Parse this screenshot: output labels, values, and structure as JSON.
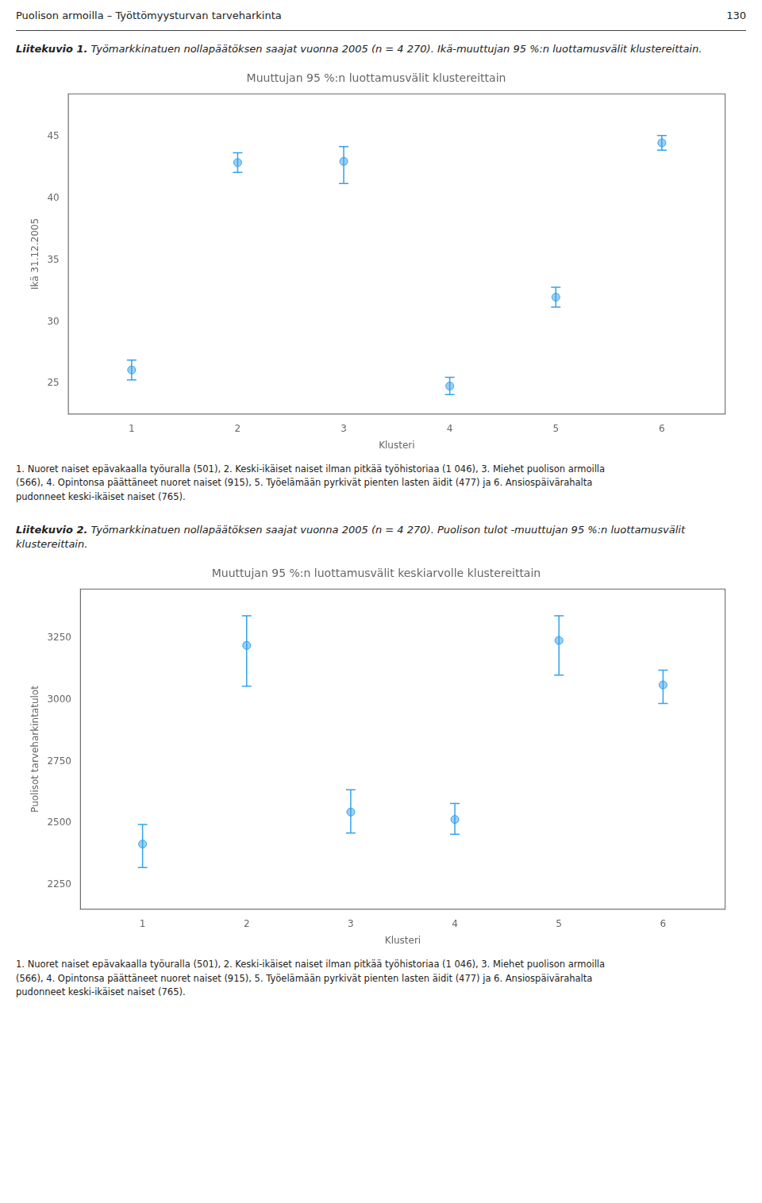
{
  "page_header": "Puolison armoilla – Työttömyysturvan tarveharkinta",
  "page_number": "130",
  "chart_data": [
    {
      "type": "errorbar",
      "caption_label": "Liitekuvio 1.",
      "caption": "Työmarkkinatuen nollapäätöksen saajat vuonna 2005 (n = 4 270). Ikä-muuttujan 95 %:n luottamusvälit klustereittain.",
      "title": "Muuttujan 95 %:n luottamusvälit klustereittain",
      "xlabel": "Klusteri",
      "ylabel": "Ikä 31.12.2005",
      "x": [
        1,
        2,
        3,
        4,
        5,
        6
      ],
      "values": [
        26.1,
        42.9,
        43.0,
        24.8,
        32.0,
        44.5
      ],
      "lower": [
        25.3,
        42.1,
        41.2,
        24.1,
        31.2,
        43.9
      ],
      "upper": [
        26.9,
        43.7,
        44.2,
        25.5,
        32.8,
        45.1
      ],
      "xlim": [
        0.4,
        6.6
      ],
      "xticks": [
        1,
        2,
        3,
        4,
        5,
        6
      ],
      "ylim": [
        22.5,
        48.5
      ],
      "yticks": [
        25,
        30,
        35,
        40,
        45
      ],
      "grid": false,
      "marker": "circle",
      "footnote": "1. Nuoret naiset epävakaalla työuralla (501), 2. Keski-ikäiset naiset ilman pitkää työhistoriaa (1 046), 3. Miehet puolison armoilla\n(566), 4. Opintonsa päättäneet nuoret naiset (915), 5. Työelämään pyrkivät pienten lasten äidit (477) ja 6. Ansiospäivärahalta\npudonneet keski-ikäiset naiset (765)."
    },
    {
      "type": "errorbar",
      "caption_label": "Liitekuvio 2.",
      "caption": "Työmarkkinatuen nollapäätöksen saajat vuonna 2005 (n = 4 270). Puolison tulot -muuttujan 95 %:n luottamusvälit klustereittain.",
      "title": "Muuttujan 95 %:n luottamusvälit keskiarvolle klustereittain",
      "xlabel": "Klusteri",
      "ylabel": "Puolisot tarveharkintatulot",
      "x": [
        1,
        2,
        3,
        4,
        5,
        6
      ],
      "values": [
        2415,
        3220,
        2545,
        2515,
        3240,
        3060
      ],
      "lower": [
        2320,
        3055,
        2460,
        2455,
        3100,
        2985
      ],
      "upper": [
        2495,
        3340,
        2635,
        2580,
        3340,
        3120
      ],
      "xlim": [
        0.4,
        6.6
      ],
      "xticks": [
        1,
        2,
        3,
        4,
        5,
        6
      ],
      "ylim": [
        2150,
        3450
      ],
      "yticks": [
        2250,
        2500,
        2750,
        3000,
        3250
      ],
      "grid": false,
      "marker": "circle",
      "footnote": "1. Nuoret naiset epävakaalla työuralla (501), 2. Keski-ikäiset naiset ilman pitkää työhistoriaa (1 046), 3. Miehet puolison armoilla\n(566), 4. Opintonsa päättäneet nuoret naiset (915), 5. Työelämään pyrkivät pienten lasten äidit (477) ja 6. Ansiospäivärahalta\npudonneet keski-ikäiset naiset (765)."
    }
  ]
}
